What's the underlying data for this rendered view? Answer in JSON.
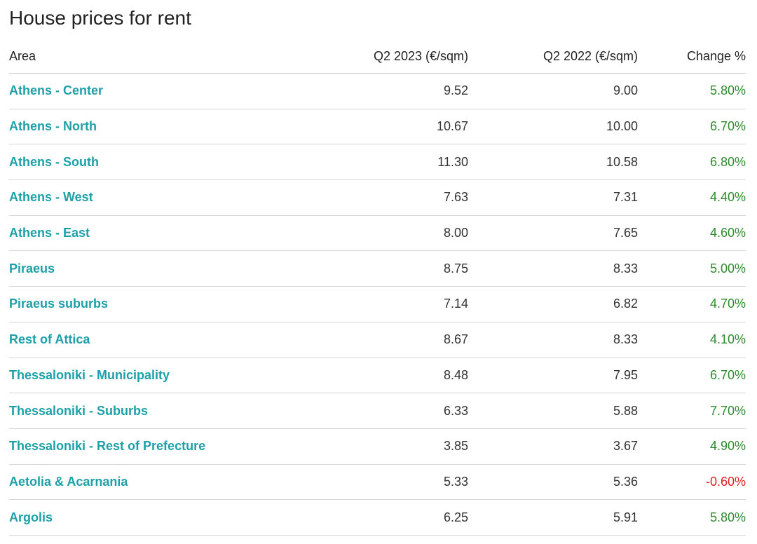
{
  "title": "House prices for rent",
  "columns": {
    "area": "Area",
    "q2_2023": "Q2 2023 (€/sqm)",
    "q2_2022": "Q2 2022 (€/sqm)",
    "change": "Change %"
  },
  "colors": {
    "link": "#1ea0a8",
    "positive": "#2e8b2e",
    "negative": "#e02020"
  },
  "rows": [
    {
      "area": "Athens - Center",
      "q2_2023": "9.52",
      "q2_2022": "9.00",
      "change": "5.80%",
      "trend": "positive"
    },
    {
      "area": "Athens - North",
      "q2_2023": "10.67",
      "q2_2022": "10.00",
      "change": "6.70%",
      "trend": "positive"
    },
    {
      "area": "Athens - South",
      "q2_2023": "11.30",
      "q2_2022": "10.58",
      "change": "6.80%",
      "trend": "positive"
    },
    {
      "area": "Athens - West",
      "q2_2023": "7.63",
      "q2_2022": "7.31",
      "change": "4.40%",
      "trend": "positive"
    },
    {
      "area": "Athens - East",
      "q2_2023": "8.00",
      "q2_2022": "7.65",
      "change": "4.60%",
      "trend": "positive"
    },
    {
      "area": "Piraeus",
      "q2_2023": "8.75",
      "q2_2022": "8.33",
      "change": "5.00%",
      "trend": "positive"
    },
    {
      "area": "Piraeus suburbs",
      "q2_2023": "7.14",
      "q2_2022": "6.82",
      "change": "4.70%",
      "trend": "positive"
    },
    {
      "area": "Rest of Attica",
      "q2_2023": "8.67",
      "q2_2022": "8.33",
      "change": "4.10%",
      "trend": "positive"
    },
    {
      "area": "Thessaloniki - Municipality",
      "q2_2023": "8.48",
      "q2_2022": "7.95",
      "change": "6.70%",
      "trend": "positive"
    },
    {
      "area": "Thessaloniki - Suburbs",
      "q2_2023": "6.33",
      "q2_2022": "5.88",
      "change": "7.70%",
      "trend": "positive"
    },
    {
      "area": "Thessaloniki - Rest of Prefecture",
      "q2_2023": "3.85",
      "q2_2022": "3.67",
      "change": "4.90%",
      "trend": "positive"
    },
    {
      "area": "Aetolia & Acarnania",
      "q2_2023": "5.33",
      "q2_2022": "5.36",
      "change": "-0.60%",
      "trend": "negative"
    },
    {
      "area": "Argolis",
      "q2_2023": "6.25",
      "q2_2022": "5.91",
      "change": "5.80%",
      "trend": "positive"
    }
  ]
}
